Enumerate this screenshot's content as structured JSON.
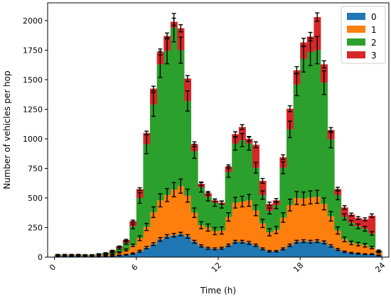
{
  "chart_data": {
    "type": "bar",
    "stacked": true,
    "step_style": true,
    "bins": 48,
    "bin_width_h": 0.5,
    "xlabel": "Time (h)",
    "ylabel": "Number of vehicles per hop",
    "xlim": [
      -0.5,
      24.5
    ],
    "ylim": [
      0,
      2150
    ],
    "xticks": [
      0,
      6,
      12,
      18,
      24
    ],
    "xtick_labels": [
      "0",
      "6",
      "12",
      "18",
      "24"
    ],
    "xtick_rotation_deg": -45,
    "yticks": [
      0,
      250,
      500,
      750,
      1000,
      1250,
      1500,
      1750,
      2000
    ],
    "ytick_labels": [
      "0",
      "250",
      "500",
      "750",
      "1000",
      "1250",
      "1500",
      "1750",
      "2000"
    ],
    "grid": false,
    "legend": {
      "placement": "top-right",
      "entries": [
        "0",
        "1",
        "2",
        "3"
      ]
    },
    "colors": [
      "#1f77b4",
      "#ff7f0e",
      "#2ca02c",
      "#d62728"
    ],
    "series": [
      {
        "name": "0",
        "values": [
          10,
          10,
          10,
          10,
          8,
          8,
          8,
          10,
          10,
          15,
          20,
          30,
          50,
          80,
          110,
          150,
          175,
          185,
          195,
          175,
          130,
          95,
          75,
          70,
          75,
          100,
          130,
          130,
          120,
          100,
          70,
          50,
          50,
          70,
          100,
          130,
          135,
          130,
          135,
          125,
          95,
          65,
          45,
          35,
          30,
          25,
          25,
          15
        ],
        "errors": [
          2,
          2,
          2,
          2,
          2,
          2,
          2,
          2,
          2,
          3,
          3,
          5,
          8,
          10,
          12,
          15,
          15,
          15,
          15,
          15,
          12,
          10,
          8,
          8,
          8,
          10,
          12,
          12,
          12,
          10,
          8,
          6,
          6,
          8,
          10,
          12,
          12,
          12,
          12,
          12,
          10,
          8,
          6,
          5,
          4,
          4,
          4,
          3
        ]
      },
      {
        "name": "1",
        "values": [
          5,
          5,
          5,
          5,
          5,
          5,
          8,
          10,
          15,
          25,
          40,
          70,
          110,
          175,
          270,
          330,
          350,
          385,
          405,
          345,
          245,
          175,
          175,
          150,
          150,
          240,
          330,
          340,
          360,
          295,
          215,
          160,
          180,
          265,
          340,
          370,
          360,
          375,
          375,
          325,
          250,
          160,
          105,
          85,
          80,
          75,
          55,
          25
        ],
        "errors": [
          2,
          2,
          2,
          2,
          2,
          2,
          3,
          3,
          4,
          5,
          8,
          10,
          20,
          30,
          45,
          55,
          55,
          60,
          60,
          55,
          40,
          30,
          30,
          30,
          30,
          35,
          45,
          45,
          50,
          45,
          35,
          30,
          30,
          40,
          50,
          55,
          55,
          55,
          55,
          50,
          40,
          30,
          20,
          15,
          15,
          15,
          10,
          5
        ]
      },
      {
        "name": "2",
        "values": [
          5,
          5,
          5,
          5,
          5,
          5,
          8,
          10,
          20,
          35,
          60,
          160,
          340,
          700,
          910,
          1150,
          1220,
          1370,
          1150,
          800,
          520,
          320,
          260,
          240,
          220,
          380,
          500,
          520,
          480,
          360,
          240,
          180,
          210,
          420,
          640,
          960,
          1180,
          1230,
          1240,
          1025,
          650,
          300,
          190,
          170,
          150,
          140,
          120,
          8
        ],
        "errors": [
          2,
          2,
          2,
          2,
          2,
          2,
          3,
          3,
          5,
          8,
          10,
          20,
          45,
          80,
          100,
          110,
          110,
          120,
          110,
          85,
          60,
          40,
          35,
          30,
          30,
          45,
          55,
          55,
          55,
          45,
          35,
          25,
          30,
          50,
          70,
          95,
          110,
          115,
          115,
          100,
          70,
          40,
          25,
          20,
          20,
          20,
          15,
          3
        ]
      },
      {
        "name": "3",
        "values": [
          2,
          2,
          2,
          2,
          2,
          2,
          3,
          5,
          10,
          15,
          25,
          45,
          75,
          95,
          135,
          105,
          125,
          50,
          185,
          190,
          60,
          30,
          30,
          20,
          15,
          45,
          80,
          110,
          40,
          195,
          120,
          60,
          40,
          90,
          175,
          120,
          140,
          130,
          280,
          155,
          80,
          50,
          80,
          70,
          70,
          80,
          150,
          7
        ],
        "errors": [
          1,
          1,
          1,
          1,
          1,
          1,
          2,
          2,
          3,
          4,
          5,
          8,
          12,
          15,
          20,
          25,
          25,
          30,
          30,
          25,
          20,
          15,
          15,
          12,
          12,
          15,
          20,
          20,
          20,
          25,
          20,
          15,
          15,
          20,
          25,
          30,
          35,
          35,
          35,
          30,
          20,
          15,
          15,
          12,
          12,
          12,
          15,
          5
        ]
      }
    ]
  }
}
